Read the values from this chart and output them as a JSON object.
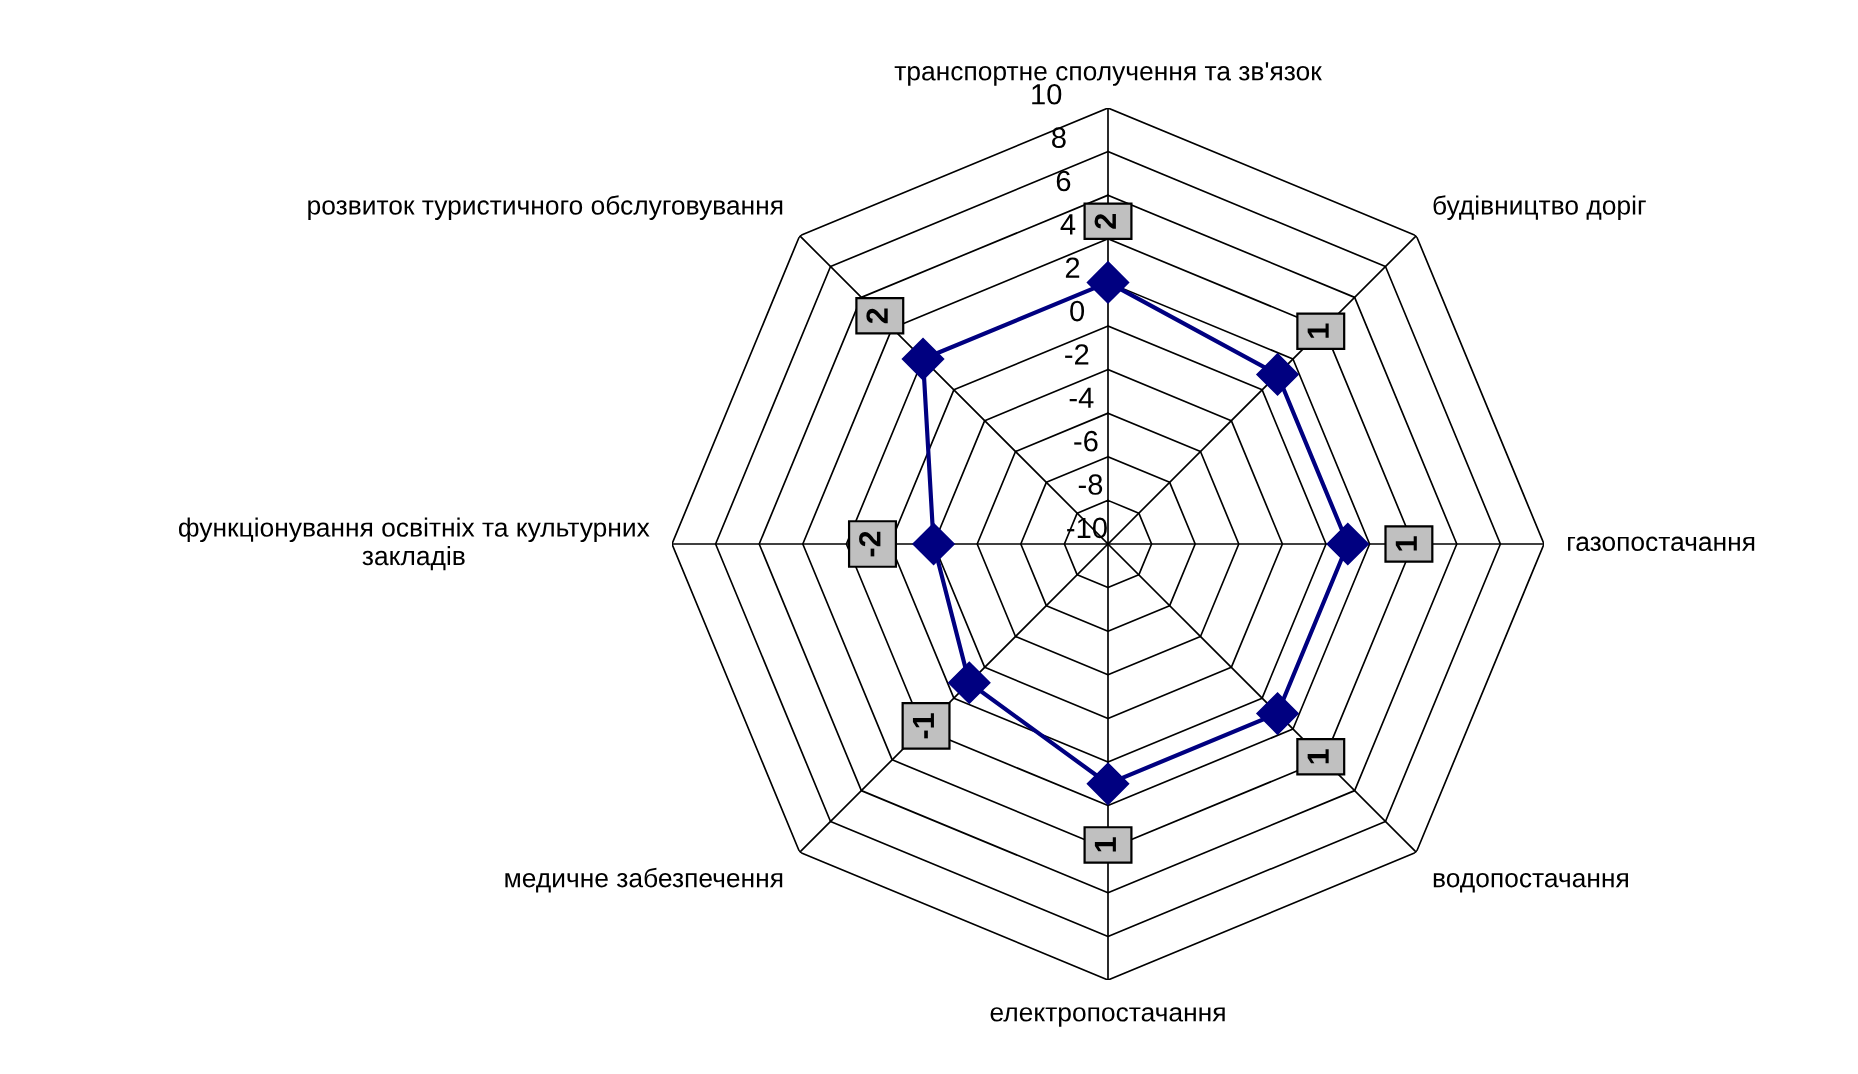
{
  "chart_data": {
    "type": "radar",
    "categories": [
      "транспортне сполучення та зв'язок",
      "будівництво доріг",
      "газопостачання",
      "водопостачання",
      "електропостачання",
      "медичне забезпечення",
      "функціонування освітніх та культурних\nзакладів",
      "розвиток туристичного обслуговування"
    ],
    "series": [
      {
        "color": "#000080",
        "values": [
          2,
          1,
          1,
          1,
          1,
          -1,
          -2,
          2
        ]
      }
    ],
    "ylim": [
      -10,
      10
    ],
    "yticks": [
      -10,
      -8,
      -6,
      -4,
      -2,
      0,
      2,
      4,
      6,
      8,
      10
    ],
    "grid": true,
    "marker": "diamond",
    "line_style": "solid",
    "data_labels": true,
    "legend": false
  }
}
